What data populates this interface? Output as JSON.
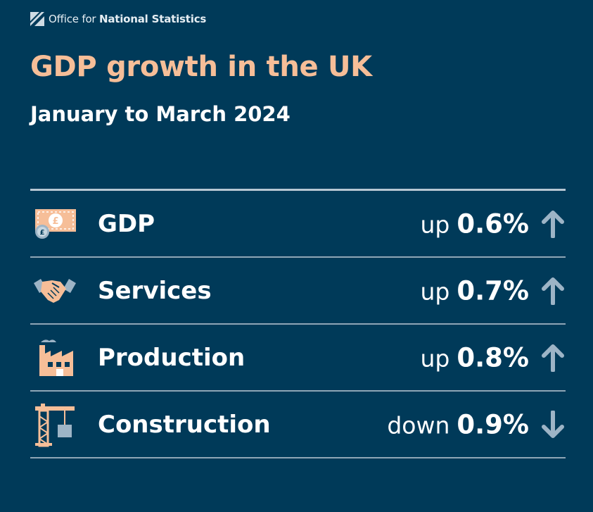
{
  "brand": {
    "logo_prefix": "Office for ",
    "logo_bold": "National Statistics"
  },
  "title": "GDP growth in the UK",
  "subtitle": "January to March 2024",
  "rows": [
    {
      "label": "GDP",
      "direction": "up",
      "value": "0.6%",
      "icon": "money-icon",
      "arrow": "arrow-up-icon"
    },
    {
      "label": "Services",
      "direction": "up",
      "value": "0.7%",
      "icon": "handshake-icon",
      "arrow": "arrow-up-icon"
    },
    {
      "label": "Production",
      "direction": "up",
      "value": "0.8%",
      "icon": "factory-icon",
      "arrow": "arrow-up-icon"
    },
    {
      "label": "Construction",
      "direction": "down",
      "value": "0.9%",
      "icon": "crane-icon",
      "arrow": "arrow-down-icon"
    }
  ],
  "colors": {
    "background": "#003a59",
    "title": "#f6be98",
    "icon_accent": "#f6be98",
    "arrow": "#9db4c6"
  }
}
